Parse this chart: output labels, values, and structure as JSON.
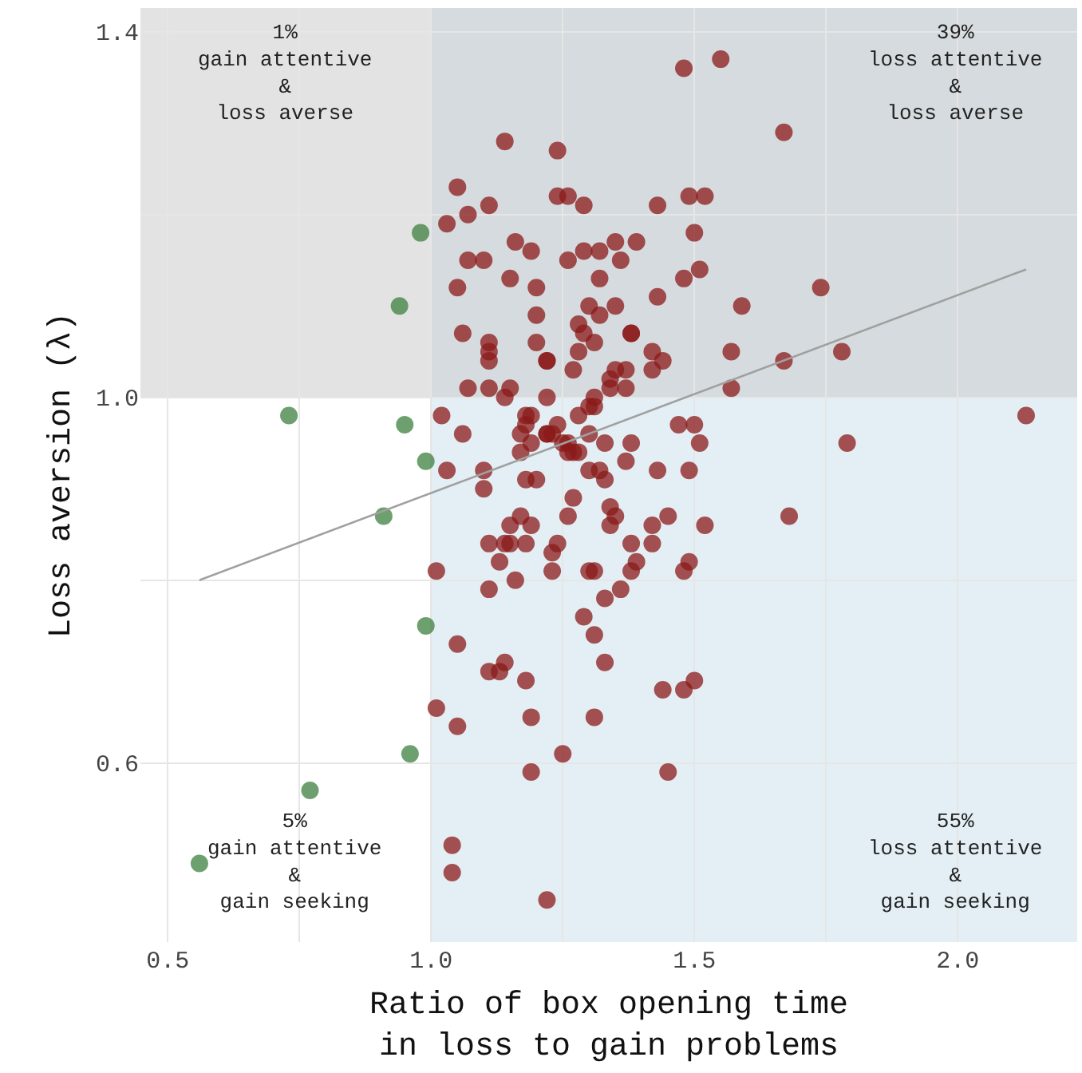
{
  "chart_data": {
    "type": "scatter",
    "xlabel": "Ratio of box opening time\nin loss to gain problems",
    "ylabel": "Loss aversion (λ)",
    "xlim": [
      0.448,
      2.227
    ],
    "ylim": [
      0.404,
      1.426
    ],
    "xticks": [
      0.5,
      {
        "value": 0.75,
        "label": null
      },
      {
        "value": 1,
        "label": "1.0"
      },
      {
        "value": 1.25,
        "label": null
      },
      1.5,
      {
        "value": 1.75,
        "label": null
      },
      {
        "value": 2,
        "label": "2.0"
      }
    ],
    "yticks": [
      0.6,
      {
        "value": 0.8,
        "label": null
      },
      {
        "value": 1,
        "label": "1.0"
      },
      {
        "value": 1.2,
        "label": null
      },
      1.4
    ],
    "grid": true,
    "marker": "circle",
    "bands": [
      {
        "axis": "x",
        "from": 1.0,
        "to": 2.227,
        "color": "#e3eff4"
      },
      {
        "axis": "y",
        "from": 1.0,
        "to": 1.426,
        "color": "#c8c8c8"
      }
    ],
    "annotations": [
      "1%\ngain attentive\n&\nloss averse",
      "39%\nloss attentive\n&\nloss averse",
      "5%\ngain attentive\n&\ngain seeking",
      "55%\nloss attentive\n&\ngain seeking"
    ],
    "series": [
      {
        "color": "#3e7f3e",
        "x": [
          0.98,
          0.94,
          0.73,
          0.95,
          0.99,
          0.91,
          0.99,
          0.96,
          0.77,
          0.56
        ],
        "values": [
          1.18,
          1.1,
          0.98,
          0.97,
          0.93,
          0.87,
          0.75,
          0.61,
          0.57,
          0.49
        ]
      },
      {
        "color": "#8b1a1a",
        "x": [
          1.48,
          1.55,
          1.14,
          1.24,
          1.05,
          1.07,
          1.11,
          1.24,
          1.26,
          1.29,
          1.43,
          1.49,
          1.52,
          1.03,
          1.16,
          1.19,
          1.07,
          1.1,
          1.26,
          1.29,
          1.32,
          1.35,
          1.39,
          1.36,
          1.5,
          1.51,
          1.05,
          1.15,
          1.2,
          1.32,
          1.43,
          1.48,
          1.59,
          1.2,
          1.3,
          1.35,
          1.28,
          1.32,
          1.06,
          1.11,
          1.11,
          1.11,
          1.2,
          1.29,
          1.31,
          1.38,
          1.38,
          1.28,
          1.22,
          1.22,
          1.42,
          1.44,
          1.42,
          1.57,
          1.27,
          1.35,
          1.37,
          1.34,
          1.34,
          1.37,
          1.07,
          1.11,
          1.15,
          1.14,
          1.22,
          1.31,
          1.31,
          1.3,
          1.57,
          1.02,
          1.06,
          1.19,
          1.18,
          1.18,
          1.17,
          1.19,
          1.17,
          1.24,
          1.22,
          1.22,
          1.23,
          1.25,
          1.28,
          1.3,
          1.26,
          1.27,
          1.26,
          1.28,
          1.33,
          1.38,
          1.37,
          1.47,
          1.5,
          1.51,
          1.43,
          1.49,
          1.03,
          1.1,
          1.18,
          1.2,
          1.3,
          1.32,
          1.33,
          1.1,
          1.27,
          1.26,
          1.34,
          1.35,
          1.34,
          1.42,
          1.45,
          1.52,
          1.11,
          1.14,
          1.15,
          1.15,
          1.17,
          1.19,
          1.18,
          1.13,
          1.16,
          1.23,
          1.23,
          1.24,
          1.38,
          1.42,
          1.39,
          1.38,
          1.3,
          1.31,
          1.48,
          1.49,
          1.01,
          1.11,
          1.36,
          1.33,
          1.29,
          1.31,
          1.05,
          1.33,
          1.11,
          1.13,
          1.14,
          1.18,
          1.44,
          1.48,
          1.5,
          1.01,
          1.05,
          1.19,
          1.31,
          1.25,
          1.19,
          1.45,
          1.04,
          1.04,
          1.22,
          1.67,
          1.74,
          1.67,
          1.78,
          2.13,
          1.79,
          1.68
        ],
        "values": [
          1.36,
          1.37,
          1.28,
          1.27,
          1.23,
          1.2,
          1.21,
          1.22,
          1.22,
          1.21,
          1.21,
          1.22,
          1.22,
          1.19,
          1.17,
          1.16,
          1.15,
          1.15,
          1.15,
          1.16,
          1.16,
          1.17,
          1.17,
          1.15,
          1.18,
          1.14,
          1.12,
          1.13,
          1.12,
          1.13,
          1.11,
          1.13,
          1.1,
          1.09,
          1.1,
          1.1,
          1.08,
          1.09,
          1.07,
          1.06,
          1.05,
          1.04,
          1.06,
          1.07,
          1.06,
          1.07,
          1.07,
          1.05,
          1.04,
          1.04,
          1.05,
          1.04,
          1.03,
          1.05,
          1.03,
          1.03,
          1.03,
          1.02,
          1.01,
          1.01,
          1.01,
          1.01,
          1.01,
          1.0,
          1.0,
          1.0,
          0.99,
          0.99,
          1.01,
          0.98,
          0.96,
          0.98,
          0.98,
          0.97,
          0.96,
          0.95,
          0.94,
          0.97,
          0.96,
          0.96,
          0.96,
          0.95,
          0.98,
          0.96,
          0.95,
          0.94,
          0.94,
          0.94,
          0.95,
          0.95,
          0.93,
          0.97,
          0.97,
          0.95,
          0.92,
          0.92,
          0.92,
          0.92,
          0.91,
          0.91,
          0.92,
          0.92,
          0.91,
          0.9,
          0.89,
          0.87,
          0.88,
          0.87,
          0.86,
          0.86,
          0.87,
          0.86,
          0.84,
          0.84,
          0.84,
          0.86,
          0.87,
          0.86,
          0.84,
          0.82,
          0.8,
          0.81,
          0.83,
          0.84,
          0.84,
          0.84,
          0.82,
          0.81,
          0.81,
          0.81,
          0.81,
          0.82,
          0.81,
          0.79,
          0.79,
          0.78,
          0.76,
          0.74,
          0.73,
          0.71,
          0.7,
          0.7,
          0.71,
          0.69,
          0.68,
          0.68,
          0.69,
          0.66,
          0.64,
          0.65,
          0.65,
          0.61,
          0.59,
          0.59,
          0.51,
          0.48,
          0.45,
          1.29,
          1.12,
          1.04,
          1.05,
          0.98,
          0.95,
          0.87
        ]
      },
      {
        "type": "line",
        "marker": "none",
        "color": "#a0a0a0",
        "x": [
          0.56,
          2.13
        ],
        "values": [
          0.8,
          1.14
        ]
      }
    ]
  }
}
